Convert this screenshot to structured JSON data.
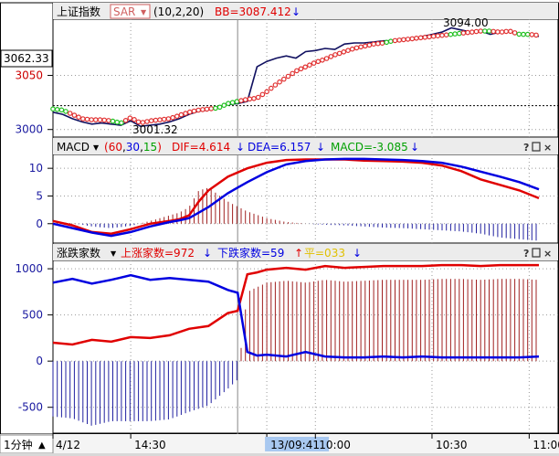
{
  "colors": {
    "up": "#e00000",
    "down": "#0000e0",
    "sar_green": "#20c020",
    "sar_red": "#e03030",
    "axis_blue": "#1a1aa0",
    "header_bg": "#ececec",
    "grid": "#b0b0b0",
    "selected_date_bg": "#a8c8f0",
    "equal_yellow": "#e0c000"
  },
  "panels": [
    {
      "header": {
        "title": "上证指数",
        "indicator": "SAR",
        "params": "(10,2,20)",
        "bb_label": "BB=3087.412",
        "bb_arrow": "↓"
      },
      "current_value_box": "3062.33",
      "annotations": {
        "high_label": "3094.00",
        "low_label": "3001.32"
      }
    },
    {
      "header": {
        "indicator": "MACD",
        "params_open": "(",
        "p1": "60",
        "p2": "30",
        "p3": "15",
        "params_close": ")",
        "dif": "DIF=4.614",
        "dif_arrow": "↓",
        "dea": "DEA=6.157",
        "dea_arrow": "↓",
        "macd": "MACD=-3.085",
        "macd_arrow": "↓"
      }
    },
    {
      "header": {
        "indicator": "涨跌家数",
        "up_label": "上涨家数=972",
        "up_arrow": "↓",
        "down_label": "下跌家数=59",
        "down_arrow": "↑",
        "equal_label": "平=033",
        "equal_arrow": "↓"
      }
    }
  ],
  "panel_icons": [
    "help-icon",
    "window-icon",
    "close-icon"
  ],
  "time_axis": {
    "period_button": "1分钟",
    "period_arrow": "▲",
    "ticks": [
      "4/12",
      "14:30",
      "13/09:41",
      "10:00",
      "10:30",
      "11:00"
    ],
    "selected": "13/09:41"
  },
  "chart_data": [
    {
      "type": "line",
      "title": "上证指数",
      "y_ticks": [
        3000,
        3050
      ],
      "ylim": [
        2993,
        3102
      ],
      "reference_line": 3022,
      "x": [
        0,
        5,
        10,
        15,
        20,
        25,
        30,
        35,
        40,
        45,
        50,
        55,
        60,
        65,
        70,
        75,
        80,
        85,
        90,
        95,
        100,
        105,
        110,
        115,
        120,
        125,
        130,
        135,
        140,
        145,
        150,
        155,
        160,
        165,
        170,
        175,
        180,
        185,
        190,
        195,
        200,
        205,
        210,
        215,
        220,
        225,
        230,
        235,
        240,
        245,
        250
      ],
      "price": [
        3016,
        3014,
        3010,
        3007,
        3005,
        3006,
        3005,
        3004,
        3008,
        3003,
        3004,
        3005,
        3007,
        3010,
        3014,
        3017,
        3018,
        3021,
        3023,
        3024,
        3026,
        3058,
        3063,
        3066,
        3068,
        3066,
        3072,
        3073,
        3075,
        3074,
        3079,
        3080,
        3080,
        3081,
        3082,
        3082,
        3084,
        3083,
        3086,
        3088,
        3090,
        3094,
        3092,
        3090,
        3091,
        3088,
        3090,
        3091,
        3088,
        3088,
        3086
      ],
      "sar": [
        3019,
        3018,
        3014,
        3010,
        3009,
        3009,
        3008,
        3006,
        3011,
        3006,
        3008,
        3009,
        3010,
        3013,
        3016,
        3018,
        3019,
        3020,
        3024,
        3026,
        3028,
        3029,
        3035,
        3042,
        3048,
        3054,
        3058,
        3062,
        3065,
        3069,
        3072,
        3075,
        3077,
        3079,
        3080,
        3082,
        3083,
        3084,
        3085,
        3086,
        3087,
        3088,
        3089,
        3090,
        3091,
        3091,
        3090,
        3091,
        3088,
        3088,
        3087
      ],
      "sar_green_segments": [
        [
          0,
          8
        ],
        [
          29,
          36
        ],
        [
          83,
          95
        ],
        [
          170,
          175
        ],
        [
          203,
          210
        ],
        [
          222,
          226
        ],
        [
          238,
          245
        ]
      ]
    },
    {
      "type": "line",
      "title": "MACD",
      "y_ticks": [
        0,
        5,
        10
      ],
      "ylim": [
        -3.5,
        12.5
      ],
      "x": [
        0,
        10,
        20,
        30,
        40,
        50,
        60,
        65,
        70,
        75,
        80,
        90,
        100,
        110,
        120,
        130,
        140,
        150,
        160,
        170,
        180,
        190,
        200,
        210,
        220,
        230,
        240,
        250
      ],
      "dif": [
        0.5,
        -0.3,
        -1.5,
        -1.8,
        -1.0,
        0.0,
        0.5,
        0.8,
        1.5,
        4.0,
        6.0,
        8.5,
        10.0,
        11.0,
        11.5,
        11.6,
        11.6,
        11.6,
        11.4,
        11.3,
        11.2,
        11.0,
        10.5,
        9.5,
        8.0,
        7.0,
        6.0,
        4.6
      ],
      "dea": [
        0.0,
        -0.8,
        -1.6,
        -2.2,
        -1.5,
        -0.5,
        0.3,
        0.6,
        1.0,
        2.0,
        3.0,
        5.5,
        7.5,
        9.3,
        10.7,
        11.3,
        11.6,
        11.7,
        11.7,
        11.6,
        11.5,
        11.3,
        11.0,
        10.3,
        9.4,
        8.5,
        7.5,
        6.2
      ],
      "macd": [
        0.4,
        0.1,
        -0.5,
        -0.8,
        -0.4,
        0.5,
        1.5,
        2.0,
        3.0,
        6.0,
        6.5,
        4.0,
        2.2,
        1.0,
        0.3,
        0.0,
        -0.2,
        -0.3,
        -0.5,
        -0.7,
        -0.8,
        -1.0,
        -1.2,
        -1.4,
        -1.8,
        -2.5,
        -2.8,
        -3.1
      ]
    },
    {
      "type": "line",
      "title": "涨跌家数",
      "y_ticks": [
        -500,
        0,
        500,
        1000
      ],
      "ylim": [
        -780,
        1090
      ],
      "x": [
        0,
        10,
        20,
        30,
        40,
        50,
        60,
        70,
        80,
        90,
        95,
        100,
        105,
        110,
        120,
        130,
        140,
        150,
        160,
        170,
        180,
        190,
        200,
        210,
        220,
        230,
        240,
        250
      ],
      "advancers": [
        200,
        180,
        230,
        210,
        260,
        250,
        280,
        350,
        380,
        520,
        545,
        940,
        960,
        990,
        1010,
        990,
        1030,
        1010,
        1020,
        1030,
        1030,
        1030,
        1040,
        1040,
        1030,
        1040,
        1040,
        1040
      ],
      "decliners": [
        850,
        890,
        840,
        880,
        930,
        880,
        900,
        880,
        860,
        770,
        740,
        100,
        60,
        70,
        50,
        100,
        50,
        40,
        40,
        50,
        40,
        50,
        40,
        40,
        40,
        40,
        40,
        50
      ],
      "histogram": [
        -600,
        -620,
        -700,
        -650,
        -650,
        -650,
        -630,
        -550,
        -480,
        -300,
        -200,
        750,
        800,
        850,
        870,
        850,
        880,
        860,
        870,
        880,
        880,
        880,
        890,
        890,
        880,
        890,
        890,
        880
      ]
    }
  ]
}
